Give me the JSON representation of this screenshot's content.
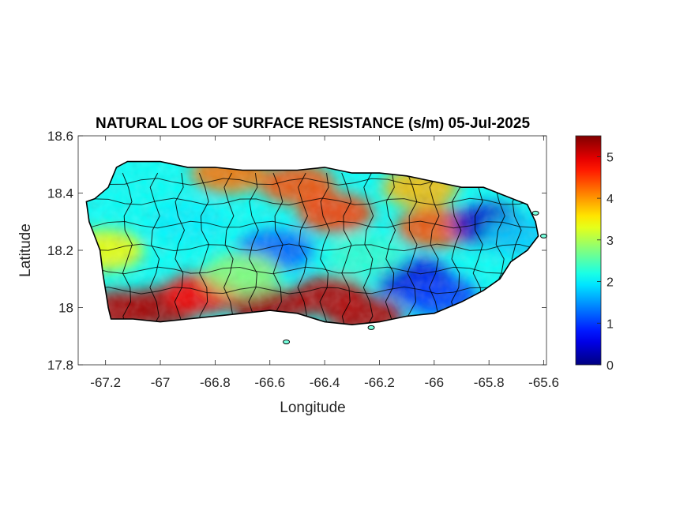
{
  "title": "NATURAL LOG OF SURFACE RESISTANCE (s/m) 05-Jul-2025",
  "chart_data": {
    "type": "heatmap",
    "title": "NATURAL LOG OF SURFACE RESISTANCE (s/m) 05-Jul-2025",
    "xlabel": "Longitude",
    "ylabel": "Latitude",
    "xlim": [
      -67.3,
      -65.59
    ],
    "ylim": [
      17.8,
      18.6
    ],
    "xticks": [
      -67.2,
      -67,
      -66.8,
      -66.6,
      -66.4,
      -66.2,
      -66,
      -65.8,
      -65.6
    ],
    "yticks": [
      17.8,
      18,
      18.2,
      18.4,
      18.6
    ],
    "xtick_labels": [
      "-67.2",
      "-67",
      "-66.8",
      "-66.6",
      "-66.4",
      "-66.2",
      "-66",
      "-65.8",
      "-65.6"
    ],
    "ytick_labels": [
      "17.8",
      "18",
      "18.2",
      "18.4",
      "18.6"
    ],
    "colorbar": {
      "colormap": "jet",
      "range": [
        0,
        5.5
      ],
      "ticks": [
        0,
        1,
        2,
        3,
        4,
        5
      ],
      "tick_labels": [
        "0",
        "1",
        "2",
        "3",
        "4",
        "5"
      ]
    },
    "outline": [
      [
        -67.27,
        18.37
      ],
      [
        -67.24,
        18.38
      ],
      [
        -67.19,
        18.42
      ],
      [
        -67.16,
        18.49
      ],
      [
        -67.12,
        18.51
      ],
      [
        -67.0,
        18.51
      ],
      [
        -66.9,
        18.49
      ],
      [
        -66.8,
        18.49
      ],
      [
        -66.7,
        18.48
      ],
      [
        -66.6,
        18.48
      ],
      [
        -66.5,
        18.48
      ],
      [
        -66.4,
        18.49
      ],
      [
        -66.3,
        18.47
      ],
      [
        -66.2,
        18.47
      ],
      [
        -66.1,
        18.46
      ],
      [
        -66.0,
        18.44
      ],
      [
        -65.9,
        18.42
      ],
      [
        -65.82,
        18.42
      ],
      [
        -65.74,
        18.39
      ],
      [
        -65.66,
        18.36
      ],
      [
        -65.63,
        18.3
      ],
      [
        -65.62,
        18.25
      ],
      [
        -65.66,
        18.2
      ],
      [
        -65.72,
        18.16
      ],
      [
        -65.76,
        18.1
      ],
      [
        -65.82,
        18.06
      ],
      [
        -65.9,
        18.02
      ],
      [
        -66.0,
        17.98
      ],
      [
        -66.1,
        17.97
      ],
      [
        -66.2,
        17.95
      ],
      [
        -66.3,
        17.94
      ],
      [
        -66.4,
        17.95
      ],
      [
        -66.5,
        17.98
      ],
      [
        -66.6,
        17.99
      ],
      [
        -66.7,
        17.98
      ],
      [
        -66.8,
        17.97
      ],
      [
        -66.9,
        17.96
      ],
      [
        -67.0,
        17.95
      ],
      [
        -67.1,
        17.96
      ],
      [
        -67.18,
        17.96
      ],
      [
        -67.19,
        18.0
      ],
      [
        -67.2,
        18.06
      ],
      [
        -67.21,
        18.12
      ],
      [
        -67.22,
        18.2
      ],
      [
        -67.26,
        18.3
      ]
    ],
    "value_centers": [
      {
        "lon": -67.15,
        "lat": 17.99,
        "value": 5.2
      },
      {
        "lon": -67.0,
        "lat": 18.0,
        "value": 5.3
      },
      {
        "lon": -66.85,
        "lat": 18.05,
        "value": 4.8
      },
      {
        "lon": -66.6,
        "lat": 18.0,
        "value": 5.3
      },
      {
        "lon": -66.38,
        "lat": 18.04,
        "value": 5.2
      },
      {
        "lon": -66.25,
        "lat": 17.97,
        "value": 5.2
      },
      {
        "lon": -66.5,
        "lat": 18.43,
        "value": 4.4
      },
      {
        "lon": -66.75,
        "lat": 18.47,
        "value": 4.2
      },
      {
        "lon": -66.36,
        "lat": 18.33,
        "value": 4.5
      },
      {
        "lon": -66.0,
        "lat": 18.28,
        "value": 4.4
      },
      {
        "lon": -66.05,
        "lat": 18.42,
        "value": 3.8
      },
      {
        "lon": -67.2,
        "lat": 18.2,
        "value": 3.4
      },
      {
        "lon": -66.9,
        "lat": 18.3,
        "value": 2.0
      },
      {
        "lon": -66.58,
        "lat": 18.2,
        "value": 1.2
      },
      {
        "lon": -66.07,
        "lat": 18.1,
        "value": 0.5
      },
      {
        "lon": -65.98,
        "lat": 18.04,
        "value": 1.0
      },
      {
        "lon": -65.8,
        "lat": 18.29,
        "value": 0.4
      },
      {
        "lon": -65.68,
        "lat": 18.25,
        "value": 1.8
      },
      {
        "lon": -66.7,
        "lat": 18.12,
        "value": 2.8
      },
      {
        "lon": -66.25,
        "lat": 18.18,
        "value": 2.3
      }
    ],
    "grid": "off",
    "box": "on"
  }
}
